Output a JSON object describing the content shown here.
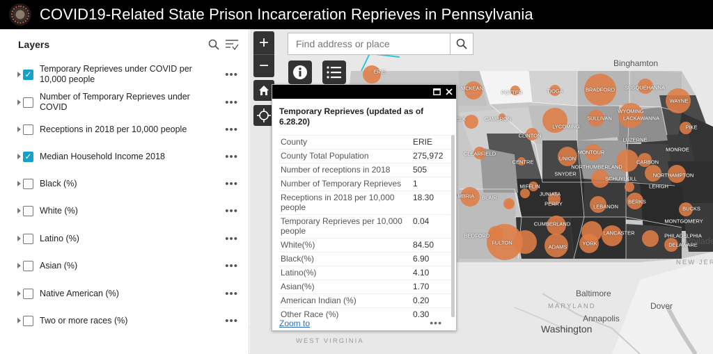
{
  "header": {
    "title": "COVID19-Related State Prison Incarceration Reprieves in Pennsylvania"
  },
  "panel": {
    "title": "Layers",
    "layers": [
      {
        "label": "Temporary Reprieves under COVID per 10,000 people",
        "checked": true
      },
      {
        "label": "Number of Temporary Reprieves under COVID",
        "checked": false
      },
      {
        "label": "Receptions in 2018 per 10,000 people",
        "checked": false
      },
      {
        "label": "Median Household Income 2018",
        "checked": true
      },
      {
        "label": "Black (%)",
        "checked": false
      },
      {
        "label": "White (%)",
        "checked": false
      },
      {
        "label": "Latino (%)",
        "checked": false
      },
      {
        "label": "Asian (%)",
        "checked": false
      },
      {
        "label": "Native American (%)",
        "checked": false
      },
      {
        "label": "Two or more races (%)",
        "checked": false
      }
    ],
    "more_label": "•••"
  },
  "search": {
    "placeholder": "Find address or place"
  },
  "map": {
    "places": [
      "Binghamton",
      "Baltimore",
      "Dover",
      "Annapolis",
      "Washington",
      "Philadelphia"
    ],
    "states": [
      "MARYLAND",
      "WEST VIRGINIA",
      "NEW JERSEY"
    ],
    "counties": [
      "ERIE",
      "MCKEAN",
      "POTTER",
      "TIOGA",
      "BRADFORD",
      "SUSQUEHANNA",
      "WAYNE",
      "ELK",
      "CAMERON",
      "WYOMING",
      "LACKAWANNA",
      "PIKE",
      "SULLIVAN",
      "LYCOMING",
      "CLINTON",
      "LUZERNE",
      "MONROE",
      "CLEARFIELD",
      "CENTRE",
      "UNION",
      "MONTOUR",
      "NORTHUMBERLAND",
      "CARBON",
      "SNYDER",
      "SCHUYLKILL",
      "NORTHAMPTON",
      "LEHIGH",
      "MIFFLIN",
      "JUNIATA",
      "CAMBRIA",
      "BLAIR",
      "PERRY",
      "LEBANON",
      "BERKS",
      "BUCKS",
      "CUMBERLAND",
      "MONTGOMERY",
      "BEDFORD",
      "FULTON",
      "LANCASTER",
      "PHILADELPHIA",
      "DELAWARE",
      "ADAMS",
      "YORK"
    ]
  },
  "popup": {
    "title": "Temporary Reprieves (updated as of 6.28.20)",
    "rows": [
      {
        "k": "County",
        "v": "ERIE"
      },
      {
        "k": "County Total Population",
        "v": "275,972"
      },
      {
        "k": "Number of receptions in 2018",
        "v": "505"
      },
      {
        "k": "Number of Temporary Reprieves",
        "v": "1"
      },
      {
        "k": "Receptions in 2018 per 10,000 people",
        "v": "18.30"
      },
      {
        "k": "Temporary Reprieves per 10,000 people",
        "v": "0.04"
      },
      {
        "k": "White(%)",
        "v": "84.50"
      },
      {
        "k": "Black(%)",
        "v": "6.90"
      },
      {
        "k": "Latino(%)",
        "v": "4.10"
      },
      {
        "k": "Asian(%)",
        "v": "1.70"
      },
      {
        "k": "American Indian (%)",
        "v": "0.20"
      },
      {
        "k": "Other Race (%)",
        "v": "0.30"
      }
    ],
    "zoom_label": "Zoom to",
    "more_label": "•••"
  },
  "icons": [
    "search-icon",
    "filter-icon",
    "zoom-in-icon",
    "zoom-out-icon",
    "home-icon",
    "locate-icon",
    "info-icon",
    "list-icon",
    "maximize-icon",
    "close-icon",
    "chevron-left-icon"
  ],
  "colors": {
    "accent": "#16a1c6",
    "bubble": "#e07d45",
    "header": "#000000"
  }
}
